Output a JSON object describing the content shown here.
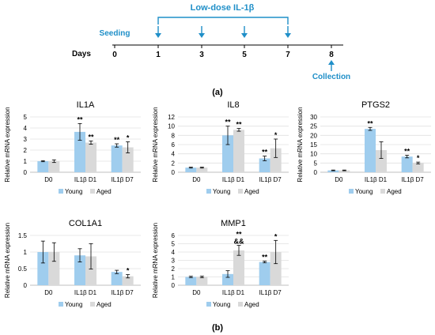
{
  "timeline": {
    "treatment_label": "Low-dose IL-1β",
    "seeding_label": "Seeding",
    "collection_label": "Collection",
    "days_label": "Days",
    "ticks": [
      "0",
      "1",
      "3",
      "5",
      "7",
      "8"
    ],
    "panel_label": "(a)",
    "colors": {
      "accent": "#1f8fc8",
      "text": "#000000"
    }
  },
  "panel_b_label": "(b)",
  "legend": {
    "young": "Young",
    "aged": "Aged"
  },
  "colors": {
    "young": "#9fcdee",
    "aged": "#d9d9d9",
    "grid": "#e0e0e0",
    "axis": "#bfbfbf"
  },
  "chart_data": [
    {
      "type": "bar",
      "title": "IL1A",
      "ylabel": "Relative mRNA expression",
      "ylim": [
        0,
        5
      ],
      "ytick_step": 1,
      "grid": true,
      "legend": "bottom",
      "categories": [
        "D0",
        "IL1β D1",
        "IL1β D7"
      ],
      "series": [
        {
          "name": "Young",
          "values": [
            1.0,
            3.65,
            2.42
          ],
          "errors": [
            0.05,
            0.75,
            0.15
          ],
          "marks": [
            "",
            "**",
            "**"
          ]
        },
        {
          "name": "Aged",
          "values": [
            1.0,
            2.68,
            2.25
          ],
          "errors": [
            0.12,
            0.15,
            0.5
          ],
          "marks": [
            "",
            "**",
            "*"
          ]
        }
      ]
    },
    {
      "type": "bar",
      "title": "IL8",
      "ylabel": "Relative mRNA expression",
      "ylim": [
        0,
        12
      ],
      "ytick_step": 2,
      "grid": true,
      "legend": "bottom",
      "categories": [
        "D0",
        "IL1β D1",
        "IL1β D7"
      ],
      "series": [
        {
          "name": "Young",
          "values": [
            1.0,
            8.0,
            3.0
          ],
          "errors": [
            0.1,
            2.0,
            0.5
          ],
          "marks": [
            "",
            "**",
            "**"
          ]
        },
        {
          "name": "Aged",
          "values": [
            1.0,
            9.2,
            5.2
          ],
          "errors": [
            0.1,
            0.3,
            2.0
          ],
          "marks": [
            "",
            "**",
            "*"
          ]
        }
      ]
    },
    {
      "type": "bar",
      "title": "PTGS2",
      "ylabel": "Relative mRNA expression",
      "ylim": [
        0,
        30
      ],
      "ytick_step": 5,
      "grid": true,
      "legend": "bottom",
      "categories": [
        "D0",
        "IL1β D1",
        "IL1β D7"
      ],
      "series": [
        {
          "name": "Young",
          "values": [
            1.0,
            23.5,
            8.5
          ],
          "errors": [
            0.2,
            0.8,
            0.7
          ],
          "marks": [
            "",
            "**",
            "**"
          ]
        },
        {
          "name": "Aged",
          "values": [
            1.0,
            12.0,
            5.0
          ],
          "errors": [
            0.2,
            4.5,
            0.5
          ],
          "marks": [
            "",
            "",
            "*"
          ]
        }
      ]
    },
    {
      "type": "bar",
      "title": "COL1A1",
      "ylabel": "Relative mRNA expression",
      "ylim": [
        0,
        1.5
      ],
      "ytick_step": 0.5,
      "grid": true,
      "legend": "bottom",
      "categories": [
        "D0",
        "IL1β D1",
        "IL1β D7"
      ],
      "series": [
        {
          "name": "Young",
          "values": [
            1.0,
            0.9,
            0.4
          ],
          "errors": [
            0.33,
            0.2,
            0.05
          ],
          "marks": [
            "",
            "",
            ""
          ]
        },
        {
          "name": "Aged",
          "values": [
            1.0,
            0.87,
            0.27
          ],
          "errors": [
            0.28,
            0.38,
            0.05
          ],
          "marks": [
            "",
            "",
            "*"
          ]
        }
      ]
    },
    {
      "type": "bar",
      "title": "MMP1",
      "ylabel": "Relative mRNA expression",
      "ylim": [
        0,
        6
      ],
      "ytick_step": 1,
      "grid": true,
      "legend": "bottom",
      "categories": [
        "D0",
        "IL1β D1",
        "IL1β D7"
      ],
      "series": [
        {
          "name": "Young",
          "values": [
            1.0,
            1.35,
            2.8
          ],
          "errors": [
            0.08,
            0.4,
            0.1
          ],
          "marks": [
            "",
            "",
            "**"
          ]
        },
        {
          "name": "Aged",
          "values": [
            1.0,
            4.2,
            4.0
          ],
          "errors": [
            0.1,
            0.6,
            1.4
          ],
          "marks": [
            "",
            "**\n&&",
            "*"
          ]
        }
      ]
    }
  ]
}
